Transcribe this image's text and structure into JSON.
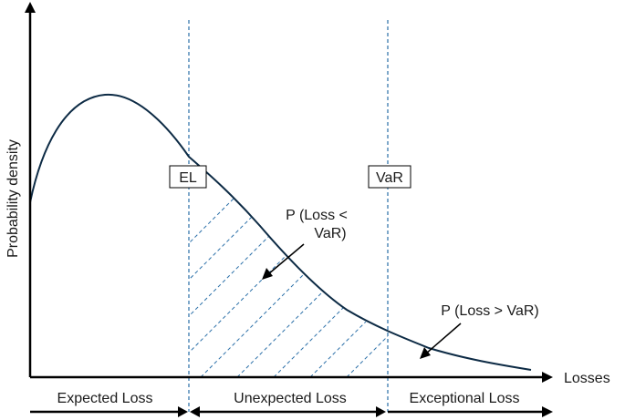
{
  "diagram": {
    "axis_labels": {
      "y": "Probability density",
      "x": "Losses"
    },
    "markers": {
      "el": "EL",
      "var": "VaR"
    },
    "annotations": {
      "p_less_line1": "P (Loss <",
      "p_less_line2": "VaR)",
      "p_greater": "P (Loss > VaR)"
    },
    "regions": {
      "expected": "Expected Loss",
      "unexpected": "Unexpected Loss",
      "exceptional": "Exceptional Loss"
    },
    "colors": {
      "curve": "#0d2b45",
      "dashed": "#2a6fa8",
      "axis": "#000000"
    }
  }
}
